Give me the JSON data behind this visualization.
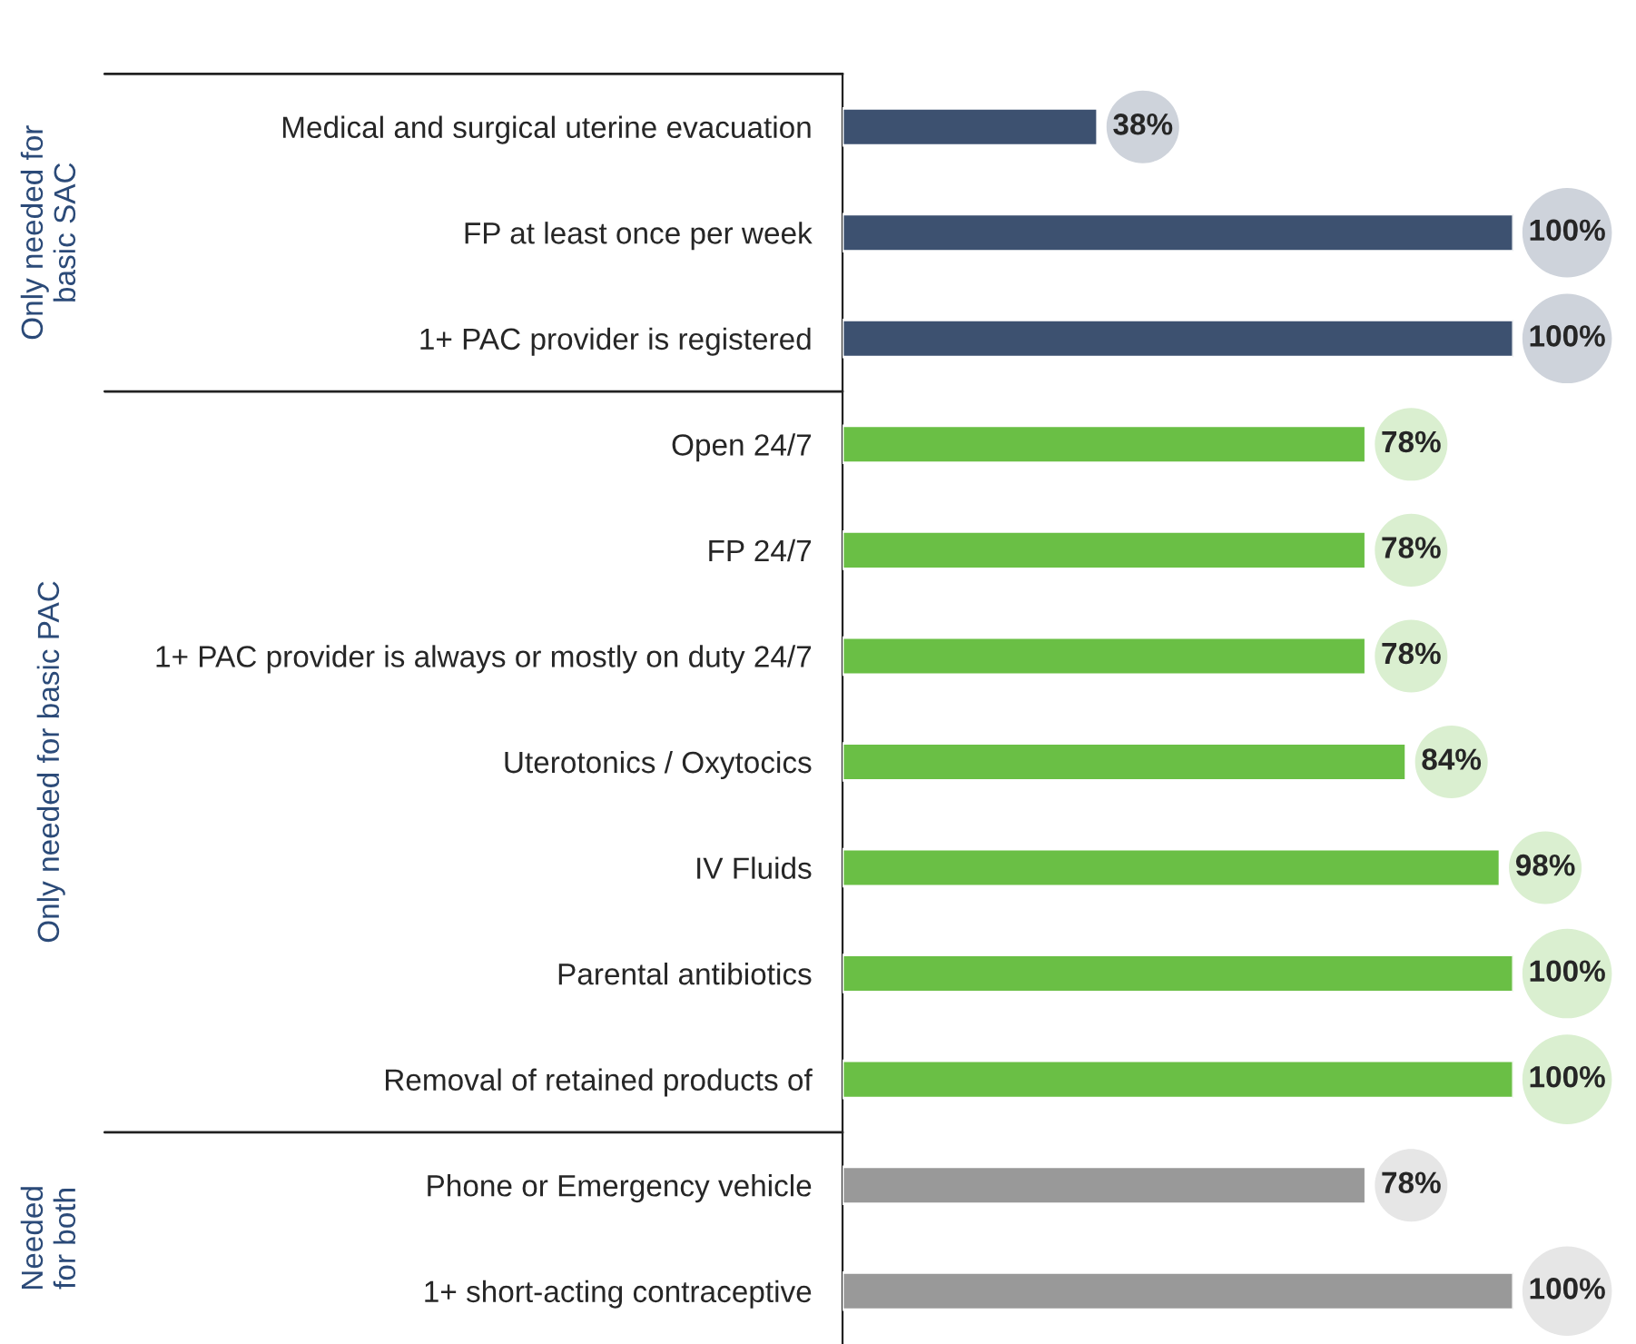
{
  "chart_data": {
    "type": "bar",
    "orientation": "horizontal",
    "categories": [
      "Medical and surgical uterine evacuation",
      "FP at least once per week",
      "1+ PAC provider is registered",
      "Open 24/7",
      "FP 24/7",
      "1+ PAC provider is always or mostly on duty 24/7",
      "Uterotonics / Oxytocics",
      "IV Fluids",
      "Parental antibiotics",
      "Removal of retained products of",
      "Phone or Emergency vehicle",
      "1+ short-acting contraceptive"
    ],
    "values": [
      38,
      100,
      100,
      78,
      78,
      78,
      84,
      98,
      100,
      100,
      78,
      100
    ],
    "colors": [
      "#3d5170",
      "#3d5170",
      "#3d5170",
      "#6abf45",
      "#6abf45",
      "#6abf45",
      "#6abf45",
      "#6abf45",
      "#6abf45",
      "#6abf45",
      "#999999",
      "#999999"
    ],
    "value_labels": [
      "38%",
      "100%",
      "100%",
      "78%",
      "78%",
      "78%",
      "84%",
      "98%",
      "100%",
      "100%",
      "78%",
      "100%"
    ],
    "xlim": [
      0,
      100
    ],
    "tick_labels": "y",
    "grid": false,
    "annotations": [
      "Only needed for\nbasic SAC",
      "Only needed for basic PAC",
      "Needed\nfor both"
    ]
  }
}
